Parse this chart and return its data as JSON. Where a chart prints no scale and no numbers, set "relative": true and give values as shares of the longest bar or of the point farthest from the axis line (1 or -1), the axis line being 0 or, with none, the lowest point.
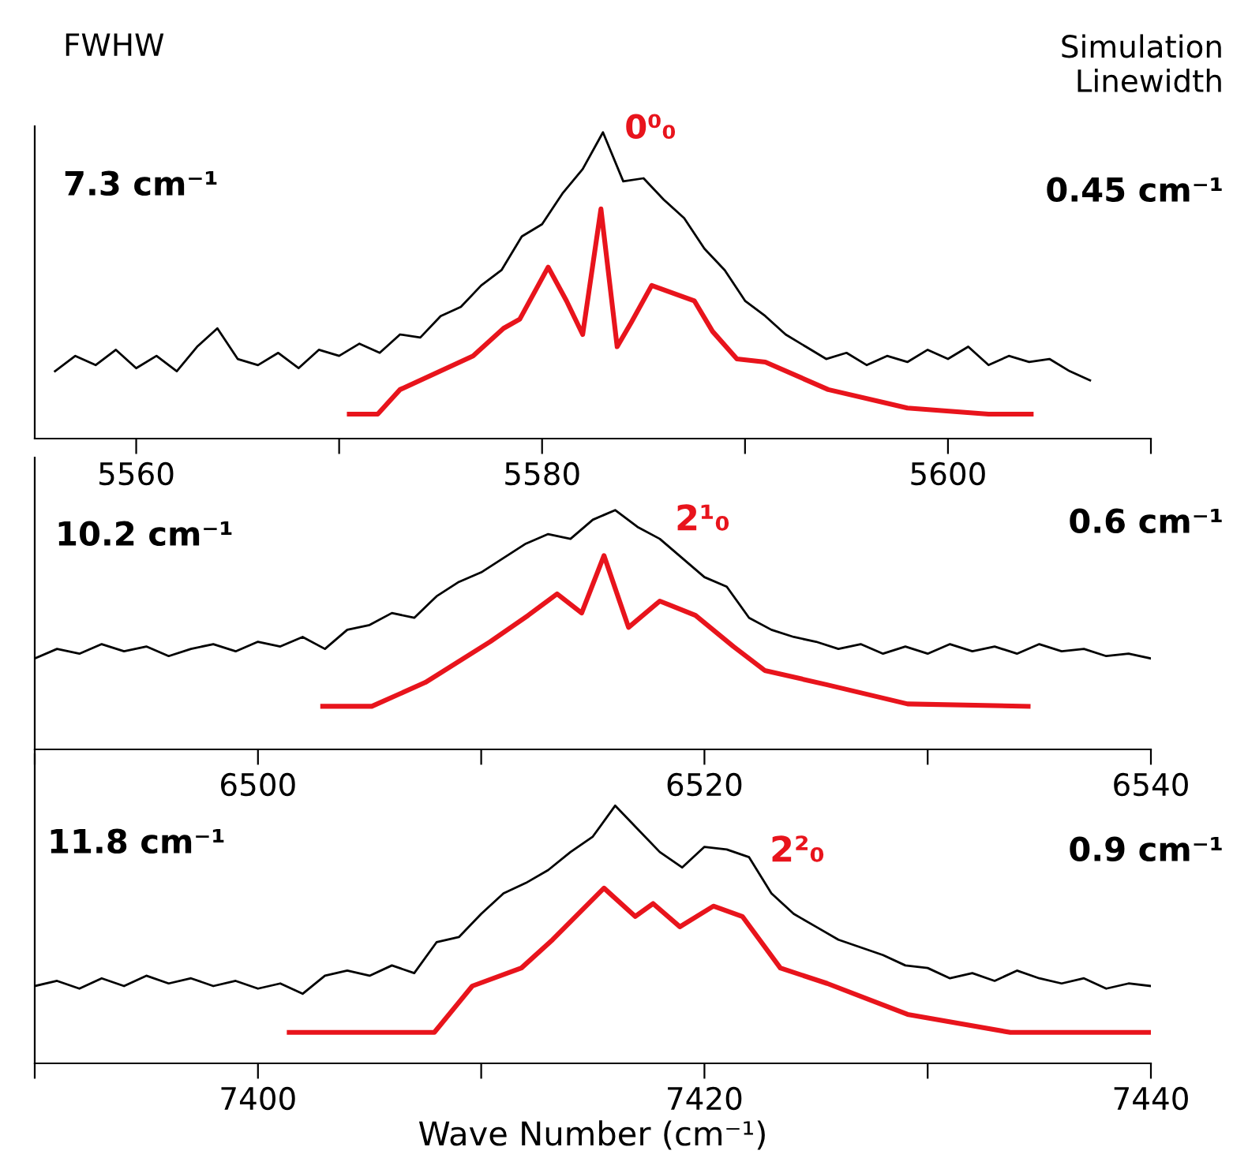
{
  "chart_data": [
    {
      "type": "line",
      "relative": true,
      "tick_labels": "x",
      "grid": false,
      "legend": false,
      "xlim": [
        5555,
        5610
      ],
      "xticks": [
        5560,
        {
          "value": 5570,
          "label": null
        },
        5580,
        {
          "value": 5590,
          "label": null
        },
        5600,
        {
          "value": 5610,
          "label": null
        }
      ],
      "annotations": [
        "FWHW",
        "Simulation\nLinewidth",
        "7.3 cm⁻¹",
        "0.45 cm⁻¹",
        "0⁰₀"
      ],
      "series": [
        {
          "color": "#000000",
          "x": [
            5556,
            5557,
            5558,
            5559,
            5560,
            5561,
            5562,
            5563,
            5564,
            5565,
            5566,
            5567,
            5568,
            5569,
            5570,
            5571,
            5572,
            5573,
            5574,
            5575,
            5576,
            5577,
            5578,
            5579,
            5580,
            5581,
            5582,
            5583,
            5584,
            5585,
            5586,
            5587,
            5588,
            5589,
            5590,
            5591,
            5592,
            5593,
            5594,
            5595,
            5596,
            5597,
            5598,
            5599,
            5600,
            5601,
            5602,
            5603,
            5604,
            5605,
            5606,
            5607
          ],
          "values": [
            0.22,
            0.27,
            0.24,
            0.29,
            0.23,
            0.27,
            0.22,
            0.3,
            0.36,
            0.26,
            0.24,
            0.28,
            0.23,
            0.29,
            0.27,
            0.31,
            0.28,
            0.34,
            0.33,
            0.4,
            0.43,
            0.5,
            0.55,
            0.66,
            0.7,
            0.8,
            0.88,
            1.0,
            0.84,
            0.85,
            0.78,
            0.72,
            0.62,
            0.55,
            0.45,
            0.4,
            0.34,
            0.3,
            0.26,
            0.28,
            0.24,
            0.27,
            0.25,
            0.29,
            0.26,
            0.3,
            0.24,
            0.27,
            0.25,
            0.26,
            0.22,
            0.19
          ]
        },
        {
          "color": "#e8141c",
          "x": [
            5570.5,
            5571.9,
            5573,
            5576.6,
            5578.1,
            5578.9,
            5580.3,
            5581.2,
            5582,
            5582.9,
            5583.7,
            5584.4,
            5585.4,
            5587.5,
            5588.4,
            5589.6,
            5591,
            5594.1,
            5598,
            5602,
            5604.1
          ],
          "values": [
            0.08,
            0.08,
            0.16,
            0.27,
            0.36,
            0.39,
            0.56,
            0.45,
            0.34,
            0.75,
            0.3,
            0.38,
            0.5,
            0.45,
            0.35,
            0.26,
            0.25,
            0.16,
            0.1,
            0.08,
            0.08
          ]
        }
      ]
    },
    {
      "type": "line",
      "relative": true,
      "tick_labels": "x",
      "grid": false,
      "legend": false,
      "xlim": [
        6490,
        6540
      ],
      "xticks": [
        {
          "value": 6490,
          "label": null
        },
        6500,
        {
          "value": 6510,
          "label": null
        },
        6520,
        {
          "value": 6530,
          "label": null
        },
        6540
      ],
      "annotations": [
        "10.2 cm⁻¹",
        "0.6 cm⁻¹",
        "2¹₀"
      ],
      "series": [
        {
          "color": "#000000",
          "x": [
            6490,
            6491,
            6492,
            6493,
            6494,
            6495,
            6496,
            6497,
            6498,
            6499,
            6500,
            6501,
            6502,
            6503,
            6504,
            6505,
            6506,
            6507,
            6508,
            6509,
            6510,
            6511,
            6512,
            6513,
            6514,
            6515,
            6516,
            6517,
            6518,
            6519,
            6520,
            6521,
            6522,
            6523,
            6524,
            6525,
            6526,
            6527,
            6528,
            6529,
            6530,
            6531,
            6532,
            6533,
            6534,
            6535,
            6536,
            6537,
            6538,
            6539,
            6540
          ],
          "values": [
            0.38,
            0.42,
            0.4,
            0.44,
            0.41,
            0.43,
            0.39,
            0.42,
            0.44,
            0.41,
            0.45,
            0.43,
            0.47,
            0.42,
            0.5,
            0.52,
            0.57,
            0.55,
            0.64,
            0.7,
            0.74,
            0.8,
            0.86,
            0.9,
            0.88,
            0.96,
            1.0,
            0.93,
            0.88,
            0.8,
            0.72,
            0.68,
            0.55,
            0.5,
            0.47,
            0.45,
            0.42,
            0.44,
            0.4,
            0.43,
            0.4,
            0.44,
            0.41,
            0.43,
            0.4,
            0.44,
            0.41,
            0.42,
            0.39,
            0.4,
            0.38
          ]
        },
        {
          "color": "#e8141c",
          "x": [
            6502.9,
            6505.1,
            6507.5,
            6510.4,
            6512.1,
            6513.4,
            6514.5,
            6515.5,
            6516.6,
            6518,
            6519.6,
            6521.3,
            6522.7,
            6525.5,
            6529.1,
            6534.5
          ],
          "values": [
            0.18,
            0.18,
            0.28,
            0.45,
            0.56,
            0.65,
            0.57,
            0.81,
            0.51,
            0.62,
            0.56,
            0.43,
            0.33,
            0.27,
            0.19,
            0.18
          ]
        }
      ]
    },
    {
      "type": "line",
      "relative": true,
      "tick_labels": "x",
      "grid": false,
      "legend": false,
      "xlim": [
        7390,
        7440
      ],
      "xticks": [
        {
          "value": 7390,
          "label": null
        },
        7400,
        {
          "value": 7410,
          "label": null
        },
        7420,
        {
          "value": 7430,
          "label": null
        },
        7440
      ],
      "xlabel": "Wave Number (cm⁻¹)",
      "annotations": [
        "11.8 cm⁻¹",
        "0.9 cm⁻¹",
        "2²₀"
      ],
      "series": [
        {
          "color": "#000000",
          "x": [
            7390,
            7391,
            7392,
            7393,
            7394,
            7395,
            7396,
            7397,
            7398,
            7399,
            7400,
            7401,
            7402,
            7403,
            7404,
            7405,
            7406,
            7407,
            7408,
            7409,
            7410,
            7411,
            7412,
            7413,
            7414,
            7415,
            7416,
            7417,
            7418,
            7419,
            7420,
            7421,
            7422,
            7423,
            7424,
            7425,
            7426,
            7427,
            7428,
            7429,
            7430,
            7431,
            7432,
            7433,
            7434,
            7435,
            7436,
            7437,
            7438,
            7439,
            7440
          ],
          "values": [
            0.3,
            0.32,
            0.29,
            0.33,
            0.3,
            0.34,
            0.31,
            0.33,
            0.3,
            0.32,
            0.29,
            0.31,
            0.27,
            0.34,
            0.36,
            0.34,
            0.38,
            0.35,
            0.47,
            0.49,
            0.58,
            0.66,
            0.7,
            0.75,
            0.82,
            0.88,
            1.0,
            0.91,
            0.82,
            0.76,
            0.84,
            0.83,
            0.8,
            0.66,
            0.58,
            0.53,
            0.48,
            0.45,
            0.42,
            0.38,
            0.37,
            0.33,
            0.35,
            0.32,
            0.36,
            0.33,
            0.31,
            0.33,
            0.29,
            0.31,
            0.3
          ]
        },
        {
          "color": "#e8141c",
          "x": [
            7401.4,
            7407.9,
            7409.6,
            7411.8,
            7413.2,
            7415.5,
            7416.9,
            7417.7,
            7418.9,
            7420.4,
            7421.7,
            7423.4,
            7425.5,
            7429.1,
            7433.7,
            7440
          ],
          "values": [
            0.12,
            0.12,
            0.3,
            0.37,
            0.48,
            0.68,
            0.57,
            0.62,
            0.53,
            0.61,
            0.57,
            0.37,
            0.31,
            0.19,
            0.12,
            0.12
          ]
        }
      ]
    }
  ]
}
